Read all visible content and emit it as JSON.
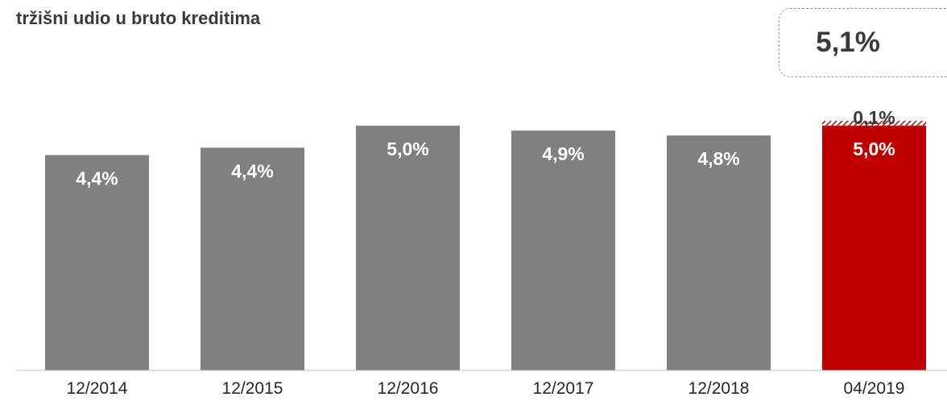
{
  "chart_data": {
    "type": "bar",
    "title": "tržišni udio u bruto kreditima",
    "total_callout": "5,1%",
    "categories": [
      "12/2014",
      "12/2015",
      "12/2016",
      "12/2017",
      "12/2018",
      "04/2019"
    ],
    "series": [
      {
        "values": [
          4.4,
          4.4,
          5.0,
          4.9,
          4.8,
          5.0
        ],
        "labels": [
          "4,4%",
          "4,4%",
          "5,0%",
          "4,9%",
          "4,8%",
          "5,0%"
        ]
      },
      {
        "values": [
          0,
          0,
          0,
          0,
          0,
          0.1
        ],
        "labels": [
          "",
          "",
          "",
          "",
          "",
          "0,1%"
        ]
      }
    ],
    "bar_height_scale": [
      4.4,
      4.55,
      5.0,
      4.9,
      4.8,
      5.0
    ],
    "colors": {
      "default_bar": "#808080",
      "highlight_bar": "#c00000",
      "increment_hatch": "#c00000"
    },
    "highlight_index": 5,
    "ylim": [
      0,
      5.1
    ],
    "grid": false,
    "xlabel": "",
    "ylabel": ""
  }
}
